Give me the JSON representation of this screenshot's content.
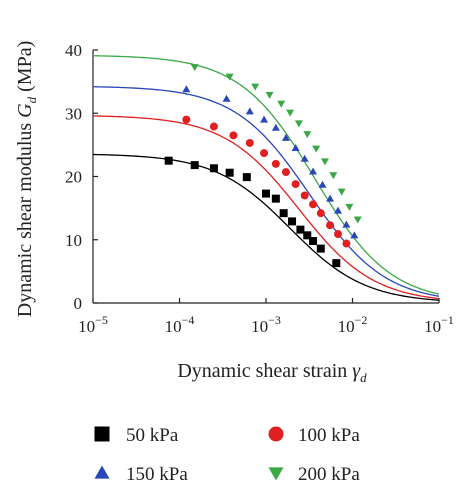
{
  "chart_data": {
    "type": "scatter",
    "title": "",
    "xlabel": "Dynamic shear strain",
    "xlabel_symbol": "γ",
    "xlabel_sub": "d",
    "ylabel": "Dynamic shear modulus",
    "ylabel_symbol": "G",
    "ylabel_sub": "d",
    "ylabel_unit": "(MPa)",
    "xscale": "log",
    "xlim": [
      1e-05,
      0.1
    ],
    "ylim": [
      0,
      40
    ],
    "x_ticks": [
      1e-05,
      0.0001,
      0.001,
      0.01,
      0.1
    ],
    "x_tick_labels": [
      {
        "base": "10",
        "exp": "−5"
      },
      {
        "base": "10",
        "exp": "−4"
      },
      {
        "base": "10",
        "exp": "−3"
      },
      {
        "base": "10",
        "exp": "−2"
      },
      {
        "base": "10",
        "exp": "−1"
      }
    ],
    "y_ticks": [
      0,
      10,
      20,
      30,
      40
    ],
    "grid": false,
    "legend_position": "bottom",
    "series": [
      {
        "name": "50 kPa",
        "color": "#000000",
        "marker": "square",
        "fit": {
          "G0": 23.6,
          "gamma_ref": 0.0019
        },
        "x": [
          7.5e-05,
          0.00015,
          0.00025,
          0.00038,
          0.0006,
          0.001,
          0.0013,
          0.0016,
          0.002,
          0.0025,
          0.003,
          0.0035,
          0.0043,
          0.0065
        ],
        "y": [
          22.5,
          21.8,
          21.3,
          20.6,
          19.9,
          17.3,
          16.5,
          14.2,
          12.9,
          11.6,
          10.7,
          9.8,
          8.6,
          6.3
        ]
      },
      {
        "name": "100 kPa",
        "color": "#e02020",
        "marker": "circle",
        "fit": {
          "G0": 29.7,
          "gamma_ref": 0.0024
        },
        "x": [
          0.00012,
          0.00025,
          0.00042,
          0.00065,
          0.00095,
          0.0013,
          0.0017,
          0.0022,
          0.0028,
          0.0035,
          0.0043,
          0.0055,
          0.0068,
          0.0085
        ],
        "y": [
          29.0,
          27.9,
          26.5,
          25.3,
          23.7,
          22.0,
          20.7,
          18.8,
          17.0,
          15.6,
          14.2,
          12.3,
          10.9,
          9.4
        ]
      },
      {
        "name": "150 kPa",
        "color": "#2a46b8",
        "marker": "triangle-up",
        "fit": {
          "G0": 34.3,
          "gamma_ref": 0.0032
        },
        "x": [
          0.00012,
          0.00035,
          0.00065,
          0.00095,
          0.0013,
          0.0017,
          0.0022,
          0.0028,
          0.0035,
          0.0045,
          0.0055,
          0.0068,
          0.0085,
          0.0105
        ],
        "y": [
          33.8,
          32.3,
          30.3,
          29.0,
          27.7,
          26.1,
          24.5,
          22.8,
          20.8,
          18.7,
          16.5,
          14.6,
          12.4,
          10.7
        ]
      },
      {
        "name": "200 kPa",
        "color": "#3aa845",
        "marker": "triangle-down",
        "fit": {
          "G0": 39.2,
          "gamma_ref": 0.0037
        },
        "x": [
          0.00015,
          0.00038,
          0.00075,
          0.0011,
          0.0015,
          0.0019,
          0.0024,
          0.003,
          0.0038,
          0.0048,
          0.006,
          0.0075,
          0.0092,
          0.0115
        ],
        "y": [
          37.3,
          35.8,
          34.2,
          32.9,
          31.5,
          30.1,
          28.4,
          26.7,
          24.4,
          22.4,
          20.2,
          17.6,
          15.2,
          13.2
        ]
      }
    ]
  }
}
